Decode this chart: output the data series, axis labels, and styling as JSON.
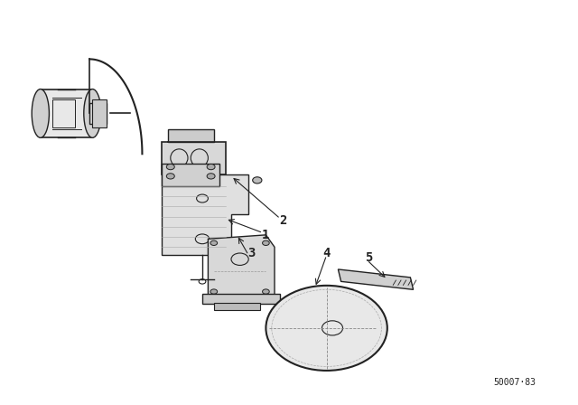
{
  "background_color": "#ffffff",
  "line_color": "#222222",
  "fig_width": 6.4,
  "fig_height": 4.48,
  "dpi": 100,
  "image_ref": "50007·83"
}
